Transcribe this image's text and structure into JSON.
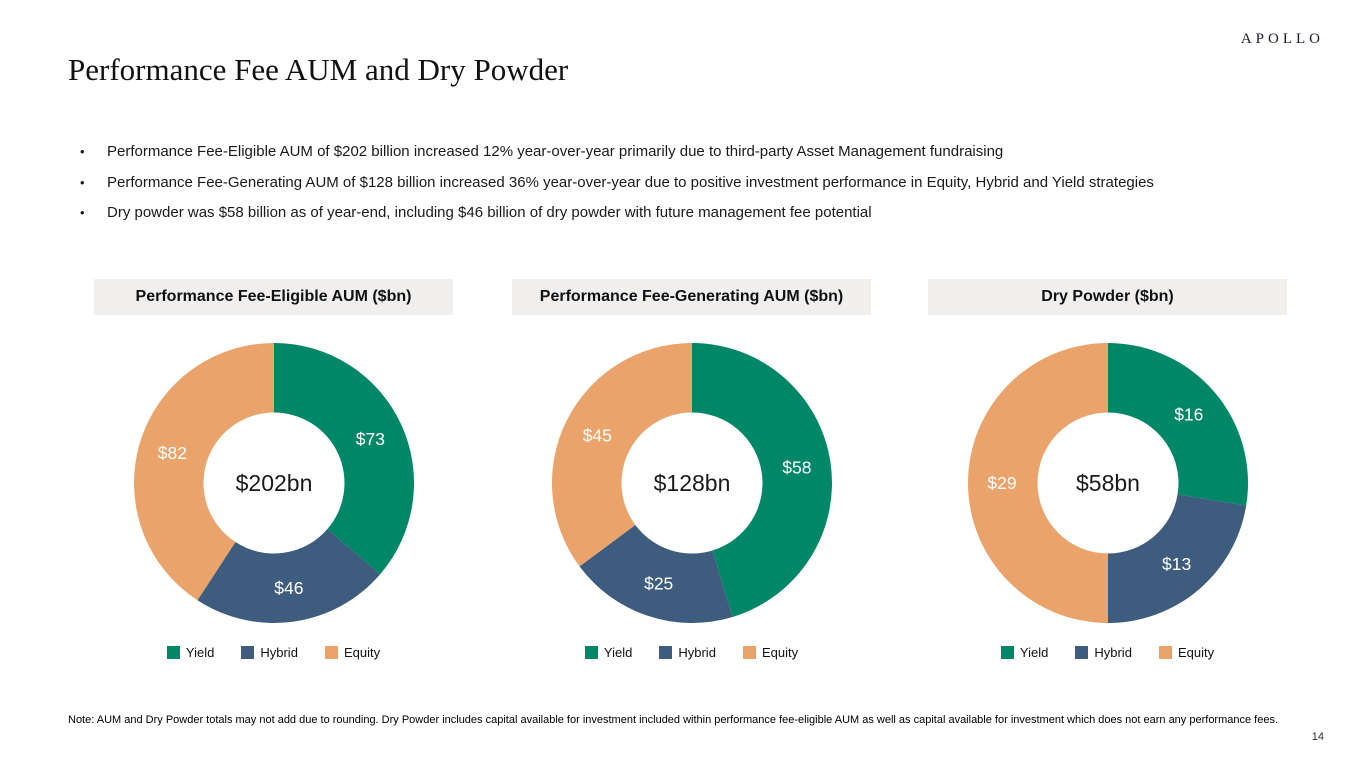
{
  "logo": "APOLLO",
  "page_title": "Performance Fee AUM and Dry Powder",
  "bullets": [
    "Performance Fee-Eligible AUM of $202 billion increased 12% year-over-year primarily due to third-party Asset Management fundraising",
    "Performance Fee-Generating AUM of $128 billion increased 36% year-over-year due to positive investment performance in Equity, Hybrid and Yield strategies",
    "Dry powder was $58 billion as of year-end, including $46 billion of dry powder with future management fee potential"
  ],
  "colors": {
    "yield": "#008767",
    "hybrid": "#3D5C7E",
    "equity": "#E9A36B",
    "header_bg": "#F0EFED",
    "slice_label": "#FFFFFF"
  },
  "chart_data": [
    {
      "type": "pie",
      "subtype": "donut",
      "title": "Performance Fee-Eligible AUM ($bn)",
      "center_label": "$202bn",
      "total": 202,
      "legend_position": "bottom",
      "categories": [
        "Yield",
        "Hybrid",
        "Equity"
      ],
      "values": [
        73,
        46,
        82
      ],
      "segments": [
        {
          "name": "Yield",
          "value": 73,
          "label": "$73",
          "color_key": "yield"
        },
        {
          "name": "Hybrid",
          "value": 46,
          "label": "$46",
          "color_key": "hybrid"
        },
        {
          "name": "Equity",
          "value": 82,
          "label": "$82",
          "color_key": "equity"
        }
      ]
    },
    {
      "type": "pie",
      "subtype": "donut",
      "title": "Performance Fee-Generating AUM ($bn)",
      "center_label": "$128bn",
      "total": 128,
      "legend_position": "bottom",
      "categories": [
        "Yield",
        "Hybrid",
        "Equity"
      ],
      "values": [
        58,
        25,
        45
      ],
      "segments": [
        {
          "name": "Yield",
          "value": 58,
          "label": "$58",
          "color_key": "yield"
        },
        {
          "name": "Hybrid",
          "value": 25,
          "label": "$25",
          "color_key": "hybrid"
        },
        {
          "name": "Equity",
          "value": 45,
          "label": "$45",
          "color_key": "equity"
        }
      ]
    },
    {
      "type": "pie",
      "subtype": "donut",
      "title": "Dry Powder ($bn)",
      "center_label": "$58bn",
      "total": 58,
      "legend_position": "bottom",
      "categories": [
        "Yield",
        "Hybrid",
        "Equity"
      ],
      "values": [
        16,
        13,
        29
      ],
      "segments": [
        {
          "name": "Yield",
          "value": 16,
          "label": "$16",
          "color_key": "yield"
        },
        {
          "name": "Hybrid",
          "value": 13,
          "label": "$13",
          "color_key": "hybrid"
        },
        {
          "name": "Equity",
          "value": 29,
          "label": "$29",
          "color_key": "equity"
        }
      ]
    }
  ],
  "note": "Note: AUM and Dry Powder totals may not add due to rounding. Dry Powder includes capital available for investment included within performance fee-eligible AUM as well as capital available for investment which does not earn any performance fees.",
  "page_number": "14"
}
